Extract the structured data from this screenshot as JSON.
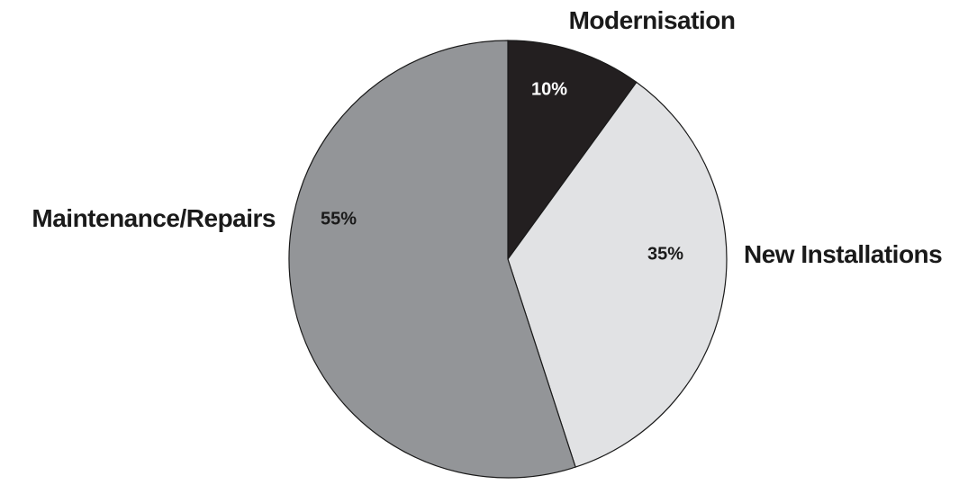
{
  "chart_data": {
    "type": "pie",
    "slices": [
      {
        "label": "Modernisation",
        "value": 10,
        "display": "10%",
        "color": "#231f20",
        "text_color": "#ffffff"
      },
      {
        "label": "New Installations",
        "value": 35,
        "display": "35%",
        "color": "#e1e2e4",
        "text_color": "#1a1a1a"
      },
      {
        "label": "Maintenance/Repairs",
        "value": 55,
        "display": "55%",
        "color": "#939598",
        "text_color": "#1a1a1a"
      }
    ],
    "start_angle": "12 o'clock",
    "direction": "clockwise",
    "legend": "none"
  }
}
